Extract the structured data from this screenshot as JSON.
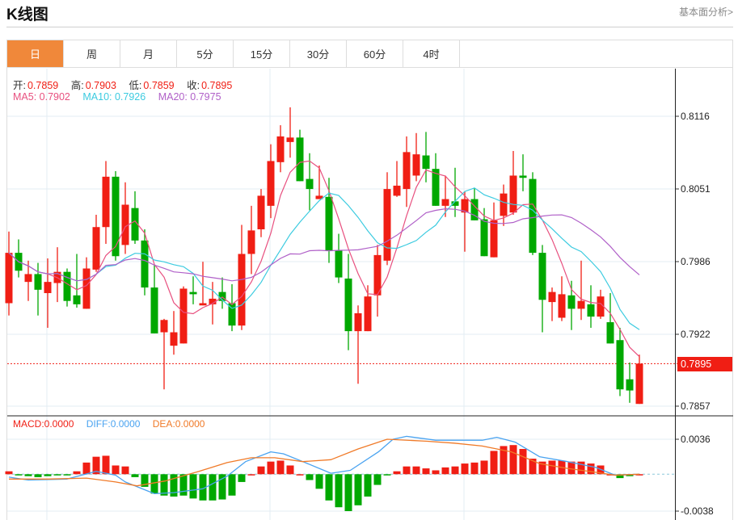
{
  "header": {
    "title": "K线图",
    "more_link": "基本面分析>"
  },
  "tabs": [
    {
      "label": "日",
      "active": true
    },
    {
      "label": "周"
    },
    {
      "label": "月"
    },
    {
      "label": "5分"
    },
    {
      "label": "15分"
    },
    {
      "label": "30分"
    },
    {
      "label": "60分"
    },
    {
      "label": "4时"
    }
  ],
  "legend": {
    "open_label": "开:",
    "open": "0.7859",
    "high_label": "高:",
    "high": "0.7903",
    "low_label": "低:",
    "low": "0.7859",
    "close_label": "收:",
    "close": "0.7895",
    "ma5": "MA5: 0.7902",
    "ma10": "MA10: 0.7926",
    "ma20": "MA20: 0.7975",
    "macd": "MACD:0.0000",
    "diff": "DIFF:0.0000",
    "dea": "DEA:0.0000"
  },
  "colors": {
    "up": "#f01e14",
    "down": "#00a800",
    "ma5": "#e8507f",
    "ma10": "#3ccbe0",
    "ma20": "#b060c8",
    "diff": "#4aa3f0",
    "dea": "#f07a28",
    "accent": "#f0883a"
  },
  "chart_data": {
    "type": "candlestick",
    "price_axis": {
      "ticks": [
        "0.8116",
        "0.8051",
        "0.7986",
        "0.7922",
        "0.7857"
      ],
      "range": [
        0.7857,
        0.8116
      ],
      "current": "0.7895"
    },
    "macd_axis": {
      "ticks": [
        "0.0036",
        "-0.0038"
      ],
      "range": [
        -0.0038,
        0.0036
      ]
    },
    "ohlc": [
      [
        0.7949,
        0.8013,
        0.7938,
        0.7994
      ],
      [
        0.7994,
        0.8006,
        0.7972,
        0.7978
      ],
      [
        0.7968,
        0.7987,
        0.7951,
        0.7975
      ],
      [
        0.7975,
        0.7985,
        0.7938,
        0.7961
      ],
      [
        0.7958,
        0.7989,
        0.7927,
        0.7968
      ],
      [
        0.7967,
        0.7999,
        0.795,
        0.7977
      ],
      [
        0.7977,
        0.798,
        0.7946,
        0.7951
      ],
      [
        0.7956,
        0.7993,
        0.7945,
        0.7948
      ],
      [
        0.7944,
        0.799,
        0.7944,
        0.798
      ],
      [
        0.7979,
        0.8028,
        0.7977,
        0.8017
      ],
      [
        0.8017,
        0.8076,
        0.8002,
        0.8062
      ],
      [
        0.8062,
        0.8067,
        0.7987,
        0.7991
      ],
      [
        0.8001,
        0.8057,
        0.7993,
        0.8037
      ],
      [
        0.8034,
        0.8049,
        0.8002,
        0.8005
      ],
      [
        0.8005,
        0.8015,
        0.7956,
        0.7963
      ],
      [
        0.7963,
        0.7983,
        0.7922,
        0.7922
      ],
      [
        0.7923,
        0.7935,
        0.7872,
        0.7934
      ],
      [
        0.7911,
        0.7942,
        0.7903,
        0.7923
      ],
      [
        0.7913,
        0.7964,
        0.7913,
        0.7962
      ],
      [
        0.7959,
        0.7973,
        0.7948,
        0.7957
      ],
      [
        0.7947,
        0.7986,
        0.7947,
        0.7949
      ],
      [
        0.7948,
        0.7968,
        0.793,
        0.7953
      ],
      [
        0.7959,
        0.7972,
        0.7944,
        0.7951
      ],
      [
        0.7949,
        0.7966,
        0.7924,
        0.7929
      ],
      [
        0.7929,
        0.8019,
        0.7925,
        0.7993
      ],
      [
        0.7993,
        0.8036,
        0.7975,
        0.8014
      ],
      [
        0.8015,
        0.8051,
        0.8008,
        0.8045
      ],
      [
        0.8036,
        0.8091,
        0.8025,
        0.8076
      ],
      [
        0.8075,
        0.8108,
        0.8066,
        0.8098
      ],
      [
        0.8093,
        0.8124,
        0.8079,
        0.8097
      ],
      [
        0.8097,
        0.8104,
        0.8058,
        0.8058
      ],
      [
        0.806,
        0.8083,
        0.8032,
        0.8051
      ],
      [
        0.8042,
        0.8072,
        0.8042,
        0.8045
      ],
      [
        0.8044,
        0.8061,
        0.7985,
        0.7996
      ],
      [
        0.7996,
        0.8011,
        0.7967,
        0.7972
      ],
      [
        0.7971,
        0.7993,
        0.7907,
        0.7924
      ],
      [
        0.7924,
        0.7947,
        0.7877,
        0.794
      ],
      [
        0.7924,
        0.7965,
        0.7924,
        0.7955
      ],
      [
        0.7956,
        0.8001,
        0.7937,
        0.7992
      ],
      [
        0.7987,
        0.8066,
        0.7983,
        0.8051
      ],
      [
        0.8045,
        0.8076,
        0.8044,
        0.8054
      ],
      [
        0.8051,
        0.8098,
        0.8035,
        0.8084
      ],
      [
        0.8063,
        0.8101,
        0.8058,
        0.8082
      ],
      [
        0.8081,
        0.8102,
        0.8057,
        0.8069
      ],
      [
        0.8069,
        0.8083,
        0.8036,
        0.8036
      ],
      [
        0.8036,
        0.8063,
        0.8026,
        0.8042
      ],
      [
        0.804,
        0.807,
        0.8026,
        0.8036
      ],
      [
        0.803,
        0.8049,
        0.7995,
        0.8042
      ],
      [
        0.8042,
        0.8052,
        0.8023,
        0.8023
      ],
      [
        0.8024,
        0.8034,
        0.7991,
        0.7991
      ],
      [
        0.799,
        0.8039,
        0.799,
        0.8023
      ],
      [
        0.8027,
        0.8055,
        0.8018,
        0.8047
      ],
      [
        0.803,
        0.8085,
        0.8028,
        0.8063
      ],
      [
        0.8063,
        0.8082,
        0.8049,
        0.8061
      ],
      [
        0.806,
        0.8066,
        0.7992,
        0.7994
      ],
      [
        0.7994,
        0.8001,
        0.7923,
        0.7952
      ],
      [
        0.795,
        0.7963,
        0.7933,
        0.7959
      ],
      [
        0.7936,
        0.7973,
        0.7933,
        0.7957
      ],
      [
        0.7956,
        0.7969,
        0.7925,
        0.7944
      ],
      [
        0.7944,
        0.7987,
        0.7934,
        0.7951
      ],
      [
        0.7948,
        0.7965,
        0.7927,
        0.7937
      ],
      [
        0.7937,
        0.7961,
        0.7935,
        0.7955
      ],
      [
        0.7932,
        0.7958,
        0.7913,
        0.7913
      ],
      [
        0.7916,
        0.7927,
        0.7866,
        0.7872
      ],
      [
        0.7881,
        0.7896,
        0.786,
        0.7871
      ],
      [
        0.7859,
        0.7903,
        0.7859,
        0.7895
      ]
    ],
    "macd_hist": [
      0.0003,
      -0.0001,
      -0.0002,
      -0.0003,
      -0.0002,
      -0.0001,
      -0.0001,
      0.0003,
      0.0012,
      0.0018,
      0.0019,
      0.0009,
      0.0008,
      -0.0003,
      -0.0013,
      -0.002,
      -0.0022,
      -0.0023,
      -0.0022,
      -0.0025,
      -0.0027,
      -0.0027,
      -0.0026,
      -0.0022,
      -0.0008,
      0,
      0.0008,
      0.0013,
      0.0014,
      0.0009,
      0,
      -0.0006,
      -0.0015,
      -0.0027,
      -0.0034,
      -0.0038,
      -0.0032,
      -0.0023,
      -0.0011,
      -0.0001,
      0.0003,
      0.0008,
      0.0008,
      0.0006,
      0.0004,
      0.0007,
      0.0008,
      0.0011,
      0.0012,
      0.0014,
      0.0024,
      0.0029,
      0.003,
      0.0026,
      0.0016,
      0.0013,
      0.0014,
      0.0014,
      0.0013,
      0.0013,
      0.0011,
      0.0009,
      0,
      -0.0004,
      -0.0002,
      0
    ],
    "diff": [
      [
        0,
        -0.0003
      ],
      [
        2,
        -0.0006
      ],
      [
        6,
        -0.0005
      ],
      [
        9,
        0.0003
      ],
      [
        11,
        -0.0001
      ],
      [
        12,
        -0.0008
      ],
      [
        15,
        -0.002
      ],
      [
        17,
        -0.0019
      ],
      [
        20,
        -0.0015
      ],
      [
        22.5,
        -0.0002
      ],
      [
        24.4,
        0.0013
      ],
      [
        27,
        0.0023
      ],
      [
        28.3,
        0.0021
      ],
      [
        30.3,
        0.0013
      ],
      [
        33.2,
        0.0001
      ],
      [
        35.2,
        0.0004
      ],
      [
        38.1,
        0.0023
      ],
      [
        39.6,
        0.0036
      ],
      [
        41,
        0.0039
      ],
      [
        44,
        0.0035
      ],
      [
        48.8,
        0.0035
      ],
      [
        50.3,
        0.0038
      ],
      [
        52.2,
        0.0033
      ],
      [
        54.7,
        0.0018
      ],
      [
        57.6,
        0.0013
      ],
      [
        60.5,
        0.0007
      ],
      [
        62.5,
        -0.0001
      ],
      [
        65,
        0
      ]
    ],
    "dea": [
      [
        0,
        -0.0005
      ],
      [
        4,
        -0.0005
      ],
      [
        8,
        -0.0004
      ],
      [
        11,
        -0.0008
      ],
      [
        13.2,
        -0.0012
      ],
      [
        16.1,
        -0.0007
      ],
      [
        19.6,
        0.0003
      ],
      [
        22.5,
        0.0012
      ],
      [
        25,
        0.0017
      ],
      [
        27.4,
        0.0017
      ],
      [
        30.3,
        0.0013
      ],
      [
        33.2,
        0.0015
      ],
      [
        36,
        0.0026
      ],
      [
        39,
        0.0036
      ],
      [
        43,
        0.0034
      ],
      [
        45.9,
        0.0032
      ],
      [
        48.8,
        0.0029
      ],
      [
        51.8,
        0.0023
      ],
      [
        54.7,
        0.0011
      ],
      [
        57.6,
        0.0006
      ],
      [
        60.5,
        0.0002
      ],
      [
        62.5,
        -0.0001
      ],
      [
        65,
        0
      ]
    ]
  }
}
